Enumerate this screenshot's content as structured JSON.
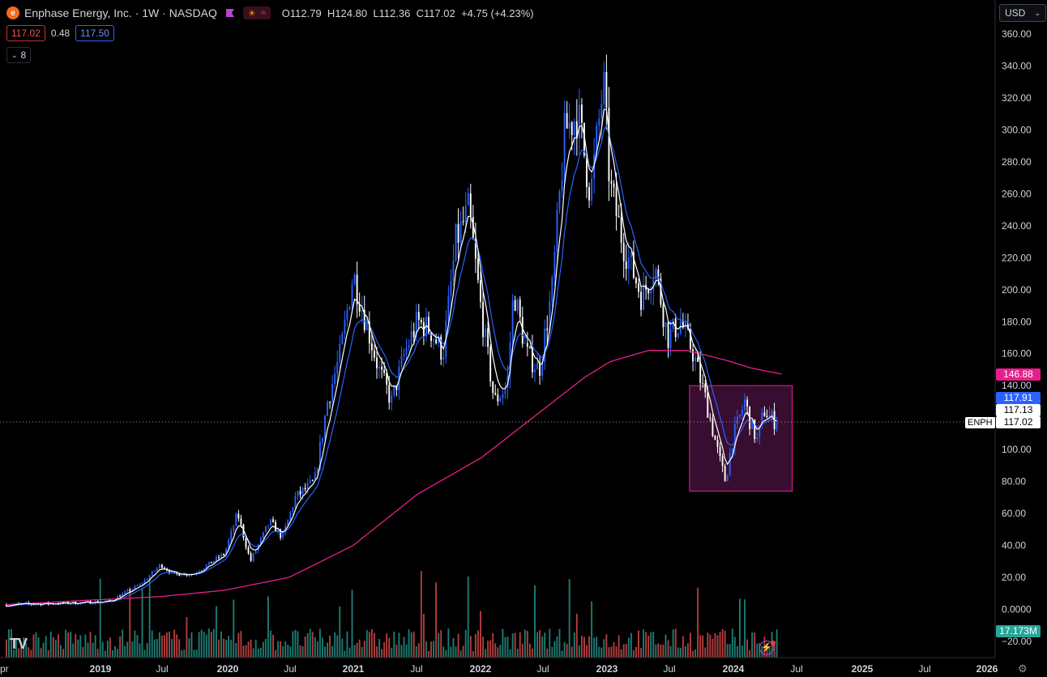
{
  "header": {
    "symbol_title": "Enphase Energy, Inc. · 1W · NASDAQ",
    "logo_letter": "e",
    "ohlc": {
      "o_label": "O",
      "o": "112.79",
      "h_label": "H",
      "h": "124.80",
      "l_label": "L",
      "l": "112.36",
      "c_label": "C",
      "c": "117.02",
      "change": "+4.75 (+4.23%)"
    },
    "bid": "117.02",
    "spread": "0.48",
    "ask": "117.50",
    "indicators_count": "8",
    "currency": "USD"
  },
  "colors": {
    "up": "#2962ff",
    "down": "#ffffff",
    "ma_fast": "#ffffff",
    "ma_mid": "#2962ff",
    "ma_slow": "#e91e8c",
    "vol_up": "#26a69a",
    "vol_down": "#ef5350",
    "box_fill": "#4a1340",
    "box_stroke": "#e91e8c"
  },
  "price_axis": {
    "ticks": [
      "360.00",
      "340.00",
      "320.00",
      "300.00",
      "280.00",
      "260.00",
      "240.00",
      "220.00",
      "200.00",
      "180.00",
      "160.00",
      "140.00",
      "120.00",
      "100.00",
      "80.00",
      "60.00",
      "40.00",
      "20.00",
      "0.0000",
      "−20.00"
    ],
    "labels": {
      "ma_slow": "146.88",
      "ma_mid": "117.91",
      "ma_fast": "117.13",
      "last": "117.02",
      "last_symbol": "ENPH",
      "volume": "17.173M"
    }
  },
  "time_axis": [
    "pr",
    "2019",
    "Jul",
    "2020",
    "Jul",
    "2021",
    "Jul",
    "2022",
    "Jul",
    "2023",
    "Jul",
    "2024",
    "Jul",
    "2025",
    "Jul",
    "2026"
  ],
  "chart_data": {
    "type": "candlestick",
    "x_unit": "year",
    "ylim": [
      -20,
      360
    ],
    "ma_slow_last": 146.88,
    "ma_mid_last": 117.91,
    "ma_fast_last": 117.13,
    "last_price": 117.02,
    "price_path": [
      [
        2018.3,
        3
      ],
      [
        2018.8,
        4
      ],
      [
        2019.1,
        5
      ],
      [
        2019.35,
        16
      ],
      [
        2019.5,
        28
      ],
      [
        2019.6,
        22
      ],
      [
        2019.75,
        22
      ],
      [
        2019.85,
        27
      ],
      [
        2020.0,
        35
      ],
      [
        2020.1,
        60
      ],
      [
        2020.2,
        30
      ],
      [
        2020.35,
        55
      ],
      [
        2020.45,
        45
      ],
      [
        2020.55,
        70
      ],
      [
        2020.7,
        80
      ],
      [
        2020.8,
        130
      ],
      [
        2020.9,
        160
      ],
      [
        2021.0,
        210
      ],
      [
        2021.1,
        180
      ],
      [
        2021.2,
        150
      ],
      [
        2021.3,
        130
      ],
      [
        2021.4,
        160
      ],
      [
        2021.5,
        180
      ],
      [
        2021.6,
        175
      ],
      [
        2021.7,
        160
      ],
      [
        2021.8,
        230
      ],
      [
        2021.9,
        250
      ],
      [
        2022.0,
        185
      ],
      [
        2022.1,
        130
      ],
      [
        2022.2,
        140
      ],
      [
        2022.25,
        200
      ],
      [
        2022.35,
        160
      ],
      [
        2022.45,
        150
      ],
      [
        2022.55,
        200
      ],
      [
        2022.65,
        300
      ],
      [
        2022.75,
        310
      ],
      [
        2022.85,
        260
      ],
      [
        2022.95,
        330
      ],
      [
        2023.0,
        265
      ],
      [
        2023.1,
        230
      ],
      [
        2023.25,
        195
      ],
      [
        2023.35,
        215
      ],
      [
        2023.45,
        170
      ],
      [
        2023.55,
        180
      ],
      [
        2023.65,
        160
      ],
      [
        2023.75,
        130
      ],
      [
        2023.85,
        95
      ],
      [
        2023.9,
        80
      ],
      [
        2023.95,
        105
      ],
      [
        2024.05,
        130
      ],
      [
        2024.1,
        115
      ],
      [
        2024.15,
        105
      ],
      [
        2024.2,
        125
      ],
      [
        2024.25,
        120
      ],
      [
        2024.3,
        117
      ]
    ],
    "ma_slow_path": [
      [
        2018.3,
        3
      ],
      [
        2019.0,
        6
      ],
      [
        2019.5,
        8
      ],
      [
        2020.0,
        12
      ],
      [
        2020.5,
        20
      ],
      [
        2021.0,
        40
      ],
      [
        2021.5,
        72
      ],
      [
        2022.0,
        95
      ],
      [
        2022.4,
        120
      ],
      [
        2022.8,
        145
      ],
      [
        2023.0,
        155
      ],
      [
        2023.3,
        162
      ],
      [
        2023.6,
        162
      ],
      [
        2023.9,
        156
      ],
      [
        2024.1,
        151
      ],
      [
        2024.35,
        147
      ]
    ],
    "highlight_box": {
      "x0": 2023.62,
      "x1": 2024.42,
      "y0": 74,
      "y1": 140
    }
  }
}
